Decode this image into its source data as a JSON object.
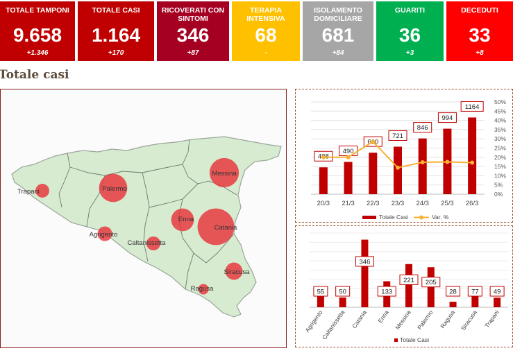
{
  "kpis": [
    {
      "label": "TOTALE TAMPONI",
      "value": "9.658",
      "delta": "+1.346",
      "color": "#c00000"
    },
    {
      "label": "TOTALE CASI",
      "value": "1.164",
      "delta": "+170",
      "color": "#c00000"
    },
    {
      "label": "RICOVERATI CON SINTOMI",
      "value": "346",
      "delta": "+87",
      "color": "#a50021"
    },
    {
      "label": "TERAPIA INTENSIVA",
      "value": "68",
      "delta": "-",
      "color": "#ffc000"
    },
    {
      "label": "ISOLAMENTO DOMICILIARE",
      "value": "681",
      "delta": "+84",
      "color": "#a6a6a6"
    },
    {
      "label": "GUARITI",
      "value": "36",
      "delta": "+3",
      "color": "#00b050"
    },
    {
      "label": "DECEDUTI",
      "value": "33",
      "delta": "+8",
      "color": "#ff0000"
    }
  ],
  "section_title": "Totale casi",
  "map": {
    "land_color": "#d6ebcf",
    "bubble_color": "#e8333a",
    "cities": [
      {
        "name": "Trapani",
        "cases": 49
      },
      {
        "name": "Palermo",
        "cases": 205
      },
      {
        "name": "Messina",
        "cases": 221
      },
      {
        "name": "Agrigento",
        "cases": 55
      },
      {
        "name": "Enna",
        "cases": 133
      },
      {
        "name": "Catania",
        "cases": 346
      },
      {
        "name": "Caltanissetta",
        "cases": 50
      },
      {
        "name": "Siracusa",
        "cases": 77
      },
      {
        "name": "Ragusa",
        "cases": 28
      }
    ]
  },
  "chart_data": [
    {
      "type": "bar",
      "categories": [
        "20/3",
        "21/3",
        "22/3",
        "23/3",
        "24/3",
        "25/3",
        "26/3"
      ],
      "series": [
        {
          "name": "Totale Casi",
          "values": [
            408,
            490,
            630,
            721,
            846,
            994,
            1164
          ],
          "color": "#c00000",
          "kind": "bar"
        },
        {
          "name": "Var. %",
          "values": [
            20,
            20,
            28.5,
            14.4,
            17.3,
            17.5,
            17.1
          ],
          "color": "#f8b133",
          "kind": "line",
          "axis": "right"
        }
      ],
      "y2_ticks": [
        "0%",
        "5%",
        "10%",
        "15%",
        "20%",
        "25%",
        "30%",
        "35%",
        "40%",
        "45%",
        "50%"
      ],
      "y2lim": [
        0,
        50
      ],
      "ylim": [
        0,
        1400
      ]
    },
    {
      "type": "bar",
      "categories": [
        "Agrigento",
        "Caltanissetta",
        "Catania",
        "Enna",
        "Messina",
        "Palermo",
        "Ragusa",
        "Siracusa",
        "Trapani"
      ],
      "series": [
        {
          "name": "Totale Casi",
          "values": [
            55,
            50,
            346,
            133,
            221,
            205,
            28,
            77,
            49
          ],
          "color": "#c00000"
        }
      ],
      "ylim": [
        0,
        380
      ]
    }
  ]
}
